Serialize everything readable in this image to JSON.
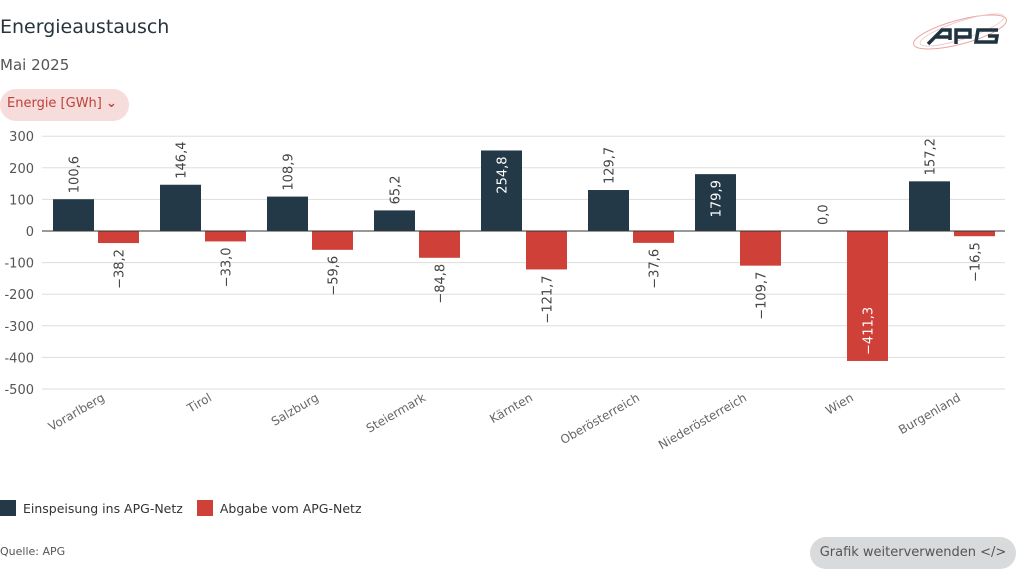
{
  "header": {
    "title": "Energieaustausch",
    "subtitle": "Mai 2025",
    "unit_select": "Energie [GWh]",
    "logo_text": "APG"
  },
  "colors": {
    "einspeisung": "#243947",
    "abgabe": "#cf4039",
    "grid": "#dddddd"
  },
  "chart_data": {
    "type": "bar",
    "categories": [
      "Vorarlberg",
      "Tirol",
      "Salzburg",
      "Steiermark",
      "Kärnten",
      "Oberösterreich",
      "Niederösterreich",
      "Wien",
      "Burgenland"
    ],
    "series": [
      {
        "name": "Einspeisung ins APG-Netz",
        "labels": [
          "100,6",
          "146,4",
          "108,9",
          "65,2",
          "254,8",
          "129,7",
          "179,9",
          "0,0",
          "157,2"
        ],
        "values": [
          100.6,
          146.4,
          108.9,
          65.2,
          254.8,
          129.7,
          179.9,
          0.0,
          157.2
        ]
      },
      {
        "name": "Abgabe vom APG-Netz",
        "labels": [
          "−38,2",
          "−33,0",
          "−59,6",
          "−84,8",
          "−121,7",
          "−37,6",
          "−109,7",
          "−411,3",
          "−16,5"
        ],
        "values": [
          -38.2,
          -33.0,
          -59.6,
          -84.8,
          -121.7,
          -37.6,
          -109.7,
          -411.3,
          -16.5
        ]
      }
    ],
    "yticks": [
      "300",
      "200",
      "100",
      "0",
      "-100",
      "-200",
      "-300",
      "-400",
      "-500"
    ],
    "ytick_values": [
      300,
      200,
      100,
      0,
      -100,
      -200,
      -300,
      -400,
      -500
    ],
    "ylim": [
      -500,
      300
    ],
    "grid": true,
    "legend": "bottom-left"
  },
  "footer": {
    "source": "Quelle: APG",
    "reuse_button": "Grafik weiterverwenden </>"
  }
}
